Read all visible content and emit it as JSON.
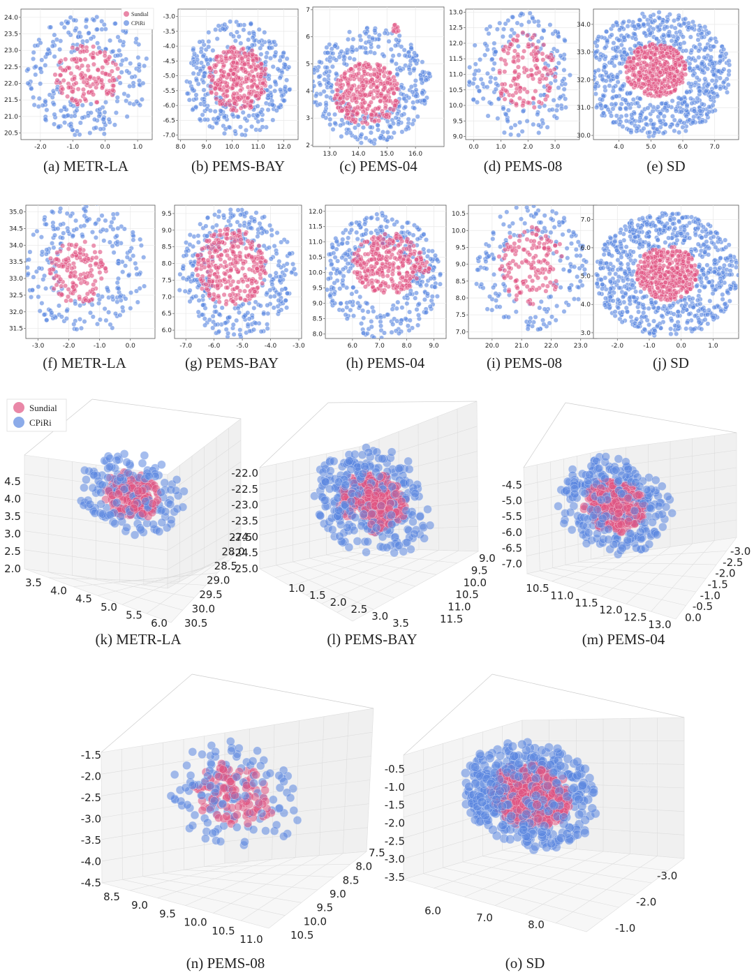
{
  "colors": {
    "sundial": "#e05482",
    "cpiri": "#5b87e0"
  },
  "legend": [
    {
      "name": "Sundial",
      "color": "#e05482"
    },
    {
      "name": "CPiRi",
      "color": "#5b87e0"
    }
  ],
  "chart_data": [
    {
      "type": "scatter",
      "caption": "(a) METR-LA",
      "xlim": [
        -2.6,
        1.45
      ],
      "ylim": [
        20.3,
        24.25
      ],
      "xticks": [
        "-2.0",
        "-1.0",
        "0.0",
        "1.0"
      ],
      "xtick_vals": [
        -2,
        -1,
        0,
        1
      ],
      "yticks": [
        "20.5",
        "21.0",
        "21.5",
        "22.0",
        "22.5",
        "23.0",
        "23.5",
        "24.0"
      ],
      "ytick_vals": [
        20.5,
        21,
        21.5,
        22,
        22.5,
        23,
        23.5,
        24
      ],
      "legend": "top-right",
      "series": [
        {
          "name": "Sundial",
          "shape": "disk",
          "center": [
            -0.55,
            22.25
          ],
          "radius": [
            1.0,
            0.95
          ],
          "count": 150
        },
        {
          "name": "CPiRi",
          "shape": "ring",
          "center": [
            -0.55,
            22.25
          ],
          "radius": [
            1.9,
            1.85
          ],
          "inner": 0.45,
          "count": 230
        }
      ]
    },
    {
      "type": "scatter",
      "caption": "(b) PEMS-BAY",
      "xlim": [
        7.9,
        12.55
      ],
      "ylim": [
        -7.15,
        -2.75
      ],
      "xticks": [
        "8.0",
        "9.0",
        "10.0",
        "11.0",
        "12.0"
      ],
      "xtick_vals": [
        8,
        9,
        10,
        11,
        12
      ],
      "yticks": [
        "-7.0",
        "-6.5",
        "-6.0",
        "-5.5",
        "-5.0",
        "-4.5",
        "-4.0",
        "-3.5",
        "-3.0"
      ],
      "ytick_vals": [
        -7,
        -6.5,
        -6,
        -5.5,
        -5,
        -4.5,
        -4,
        -3.5,
        -3
      ],
      "series": [
        {
          "name": "Sundial",
          "shape": "disk",
          "center": [
            10.2,
            -5.1
          ],
          "radius": [
            1.15,
            1.1
          ],
          "count": 300
        },
        {
          "name": "CPiRi",
          "shape": "ring",
          "center": [
            10.2,
            -5.1
          ],
          "radius": [
            2.1,
            1.95
          ],
          "inner": 0.45,
          "count": 320
        }
      ]
    },
    {
      "type": "scatter",
      "caption": "(c) PEMS-04",
      "xlim": [
        12.4,
        17.0
      ],
      "ylim": [
        1.95,
        7.1
      ],
      "xticks": [
        "13.0",
        "14.0",
        "15.0",
        "16.0"
      ],
      "xtick_vals": [
        13,
        14,
        15,
        16
      ],
      "yticks": [
        "2",
        "3",
        "4",
        "5",
        "6",
        "7"
      ],
      "ytick_vals": [
        2,
        3,
        4,
        5,
        6,
        7
      ],
      "series": [
        {
          "name": "Sundial",
          "shape": "disk",
          "center": [
            14.3,
            3.9
          ],
          "radius": [
            1.15,
            1.15
          ],
          "count": 320
        },
        {
          "name": "Sundial",
          "shape": "disk",
          "center": [
            15.3,
            6.3
          ],
          "radius": [
            0.12,
            0.15
          ],
          "count": 12
        },
        {
          "name": "CPiRi",
          "shape": "ring",
          "center": [
            14.4,
            4.2
          ],
          "radius": [
            2.05,
            2.15
          ],
          "inner": 0.5,
          "count": 340
        },
        {
          "name": "CPiRi",
          "shape": "disk",
          "center": [
            16.3,
            4.5
          ],
          "radius": [
            0.25,
            0.22
          ],
          "count": 10
        }
      ]
    },
    {
      "type": "scatter",
      "caption": "(d) PEMS-08",
      "xlim": [
        -0.3,
        3.9
      ],
      "ylim": [
        8.9,
        13.1
      ],
      "xticks": [
        "0.0",
        "1.0",
        "2.0",
        "3.0"
      ],
      "xtick_vals": [
        0,
        1,
        2,
        3
      ],
      "yticks": [
        "9.0",
        "9.5",
        "10.0",
        "10.5",
        "11.0",
        "11.5",
        "12.0",
        "12.5",
        "13.0"
      ],
      "ytick_vals": [
        9,
        9.5,
        10,
        10.5,
        11,
        11.5,
        12,
        12.5,
        13
      ],
      "series": [
        {
          "name": "Sundial",
          "shape": "disk",
          "center": [
            1.9,
            11.1
          ],
          "radius": [
            1.15,
            1.25
          ],
          "count": 140
        },
        {
          "name": "CPiRi",
          "shape": "ring",
          "center": [
            1.75,
            11.0
          ],
          "radius": [
            1.95,
            2.0
          ],
          "inner": 0.45,
          "count": 180
        }
      ]
    },
    {
      "type": "scatter",
      "caption": "(e) SD",
      "xlim": [
        3.2,
        7.75
      ],
      "ylim": [
        29.85,
        34.55
      ],
      "xticks": [
        "4.0",
        "5.0",
        "6.0",
        "7.0"
      ],
      "xtick_vals": [
        4,
        5,
        6,
        7
      ],
      "yticks": [
        "30.0",
        "31.0",
        "32.0",
        "33.0",
        "34.0"
      ],
      "ytick_vals": [
        30,
        31,
        32,
        33,
        34
      ],
      "series": [
        {
          "name": "Sundial",
          "shape": "disk",
          "center": [
            5.15,
            32.35
          ],
          "radius": [
            0.95,
            0.95
          ],
          "count": 420
        },
        {
          "name": "CPiRi",
          "shape": "ring",
          "center": [
            5.2,
            32.2
          ],
          "radius": [
            2.3,
            2.25
          ],
          "inner": 0.45,
          "count": 700
        }
      ]
    },
    {
      "type": "scatter",
      "caption": "(f) METR-LA",
      "xlim": [
        -3.4,
        0.8
      ],
      "ylim": [
        31.2,
        35.2
      ],
      "xticks": [
        "-3.0",
        "-2.0",
        "-1.0",
        "0.0"
      ],
      "xtick_vals": [
        -3,
        -2,
        -1,
        0
      ],
      "yticks": [
        "31.5",
        "32.0",
        "32.5",
        "33.0",
        "33.5",
        "34.0",
        "34.5",
        "35.0"
      ],
      "ytick_vals": [
        31.5,
        32,
        32.5,
        33,
        33.5,
        34,
        34.5,
        35
      ],
      "series": [
        {
          "name": "Sundial",
          "shape": "disk",
          "center": [
            -1.7,
            33.2
          ],
          "radius": [
            1.0,
            0.95
          ],
          "count": 150
        },
        {
          "name": "CPiRi",
          "shape": "ring",
          "center": [
            -1.5,
            33.3
          ],
          "radius": [
            2.05,
            2.0
          ],
          "inner": 0.45,
          "count": 230
        }
      ]
    },
    {
      "type": "scatter",
      "caption": "(g) PEMS-BAY",
      "xlim": [
        -7.4,
        -2.9
      ],
      "ylim": [
        5.75,
        9.75
      ],
      "xticks": [
        "-7.0",
        "-6.0",
        "-5.0",
        "-4.0",
        "-3.0"
      ],
      "xtick_vals": [
        -7,
        -6,
        -5,
        -4,
        -3
      ],
      "yticks": [
        "6.0",
        "6.5",
        "7.0",
        "7.5",
        "8.0",
        "8.5",
        "9.0",
        "9.5"
      ],
      "ytick_vals": [
        6,
        6.5,
        7,
        7.5,
        8,
        8.5,
        9,
        9.5
      ],
      "series": [
        {
          "name": "Sundial",
          "shape": "disk",
          "center": [
            -5.4,
            7.9
          ],
          "radius": [
            1.25,
            1.15
          ],
          "count": 300
        },
        {
          "name": "CPiRi",
          "shape": "ring",
          "center": [
            -5.2,
            7.7
          ],
          "radius": [
            2.1,
            1.95
          ],
          "inner": 0.45,
          "count": 320
        }
      ]
    },
    {
      "type": "scatter",
      "caption": "(h) PEMS-04",
      "xlim": [
        5.0,
        9.45
      ],
      "ylim": [
        7.85,
        12.2
      ],
      "xticks": [
        "6.0",
        "7.0",
        "8.0",
        "9.0"
      ],
      "xtick_vals": [
        6,
        7,
        8,
        9
      ],
      "yticks": [
        "8.0",
        "8.5",
        "9.0",
        "9.5",
        "10.0",
        "10.5",
        "11.0",
        "11.5",
        "12.0"
      ],
      "ytick_vals": [
        8,
        8.5,
        9,
        9.5,
        10,
        10.5,
        11,
        11.5,
        12
      ],
      "series": [
        {
          "name": "Sundial",
          "shape": "disk",
          "center": [
            7.3,
            10.3
          ],
          "radius": [
            1.3,
            1.0
          ],
          "count": 300
        },
        {
          "name": "Sundial",
          "shape": "disk",
          "center": [
            8.7,
            10.2
          ],
          "radius": [
            0.2,
            0.25
          ],
          "count": 10
        },
        {
          "name": "CPiRi",
          "shape": "ring",
          "center": [
            7.1,
            9.9
          ],
          "radius": [
            2.15,
            2.05
          ],
          "inner": 0.5,
          "count": 340
        }
      ]
    },
    {
      "type": "scatter",
      "caption": "(i) PEMS-08",
      "xlim": [
        19.2,
        23.55
      ],
      "ylim": [
        6.8,
        10.75
      ],
      "xticks": [
        "20.0",
        "21.0",
        "22.0",
        "23.0"
      ],
      "xtick_vals": [
        20,
        21,
        22,
        23
      ],
      "yticks": [
        "7.0",
        "7.5",
        "8.0",
        "8.5",
        "9.0",
        "9.5",
        "10.0",
        "10.5"
      ],
      "ytick_vals": [
        7,
        7.5,
        8,
        8.5,
        9,
        9.5,
        10,
        10.5
      ],
      "series": [
        {
          "name": "Sundial",
          "shape": "disk",
          "center": [
            21.35,
            8.95
          ],
          "radius": [
            1.15,
            1.15
          ],
          "count": 140
        },
        {
          "name": "CPiRi",
          "shape": "ring",
          "center": [
            21.3,
            8.85
          ],
          "radius": [
            1.95,
            1.9
          ],
          "inner": 0.45,
          "count": 180
        }
      ]
    },
    {
      "type": "scatter",
      "caption": "(j) SD",
      "xlim": [
        -2.75,
        1.8
      ],
      "ylim": [
        2.8,
        7.5
      ],
      "xticks": [
        "-2.0",
        "-1.0",
        "0.0",
        "1.0"
      ],
      "xtick_vals": [
        -2,
        -1,
        0,
        1
      ],
      "yticks": [
        "3.0",
        "4.0",
        "5.0",
        "6.0",
        "7.0"
      ],
      "ytick_vals": [
        3,
        4,
        5,
        6,
        7
      ],
      "series": [
        {
          "name": "Sundial",
          "shape": "disk",
          "center": [
            -0.45,
            5.1
          ],
          "radius": [
            0.95,
            0.95
          ],
          "count": 420
        },
        {
          "name": "CPiRi",
          "shape": "ring",
          "center": [
            -0.45,
            5.05
          ],
          "radius": [
            2.25,
            2.2
          ],
          "inner": 0.45,
          "count": 700
        }
      ]
    },
    {
      "type": "scatter3d",
      "caption": "(k) METR-LA",
      "legend": "top-left",
      "axis_x": [
        "3.5",
        "4.0",
        "4.5",
        "5.0",
        "5.5",
        "6.0"
      ],
      "axis_y": [
        "27.5",
        "28.0",
        "28.5",
        "29.0",
        "29.5",
        "30.0",
        "30.5"
      ],
      "axis_z": [
        "2.0",
        "2.5",
        "3.0",
        "3.5",
        "4.0",
        "4.5"
      ],
      "series": [
        {
          "name": "Sundial",
          "count": 140,
          "spread": 0.55
        },
        {
          "name": "CPiRi",
          "count": 170,
          "spread": 1.0
        }
      ]
    },
    {
      "type": "scatter3d",
      "caption": "(l) PEMS-BAY",
      "axis_x": [
        "1.0",
        "1.5",
        "2.0",
        "2.5",
        "3.0",
        "3.5"
      ],
      "axis_y": [
        "9.0",
        "9.5",
        "10.0",
        "10.5",
        "11.0",
        "11.5"
      ],
      "axis_z": [
        "-25.0",
        "-24.5",
        "-24.0",
        "-23.5",
        "-23.0",
        "-22.5",
        "-22.0"
      ],
      "series": [
        {
          "name": "Sundial",
          "count": 250,
          "spread": 0.55
        },
        {
          "name": "CPiRi",
          "count": 300,
          "spread": 1.0
        }
      ]
    },
    {
      "type": "scatter3d",
      "caption": "(m) PEMS-04",
      "axis_x": [
        "10.5",
        "11.0",
        "11.5",
        "12.0",
        "12.5",
        "13.0"
      ],
      "axis_y": [
        "-3.0",
        "-2.5",
        "-2.0",
        "-1.5",
        "-1.0",
        "-0.5",
        "0.0"
      ],
      "axis_z": [
        "-7.0",
        "-6.5",
        "-6.0",
        "-5.5",
        "-5.0",
        "-4.5"
      ],
      "series": [
        {
          "name": "Sundial",
          "count": 250,
          "spread": 0.55
        },
        {
          "name": "CPiRi",
          "count": 300,
          "spread": 1.0
        }
      ]
    },
    {
      "type": "scatter3d",
      "caption": "(n) PEMS-08",
      "axis_x": [
        "8.5",
        "9.0",
        "9.5",
        "10.0",
        "10.5",
        "11.0"
      ],
      "axis_y": [
        "7.5",
        "8.0",
        "8.5",
        "9.0",
        "9.5",
        "10.0",
        "10.5"
      ],
      "axis_z": [
        "-4.5",
        "-4.0",
        "-3.5",
        "-3.0",
        "-2.5",
        "-2.0",
        "-1.5"
      ],
      "series": [
        {
          "name": "Sundial",
          "count": 110,
          "spread": 0.6
        },
        {
          "name": "CPiRi",
          "count": 130,
          "spread": 1.0
        }
      ]
    },
    {
      "type": "scatter3d",
      "caption": "(o) SD",
      "axis_x": [
        "6.0",
        "7.0",
        "8.0"
      ],
      "axis_y": [
        "-3.0",
        "-2.0",
        "-1.0"
      ],
      "axis_z": [
        "-3.5",
        "-3.0",
        "-2.5",
        "-2.0",
        "-1.5",
        "-1.0",
        "-0.5"
      ],
      "series": [
        {
          "name": "Sundial",
          "count": 420,
          "spread": 0.6
        },
        {
          "name": "CPiRi",
          "count": 480,
          "spread": 1.0
        }
      ]
    }
  ]
}
